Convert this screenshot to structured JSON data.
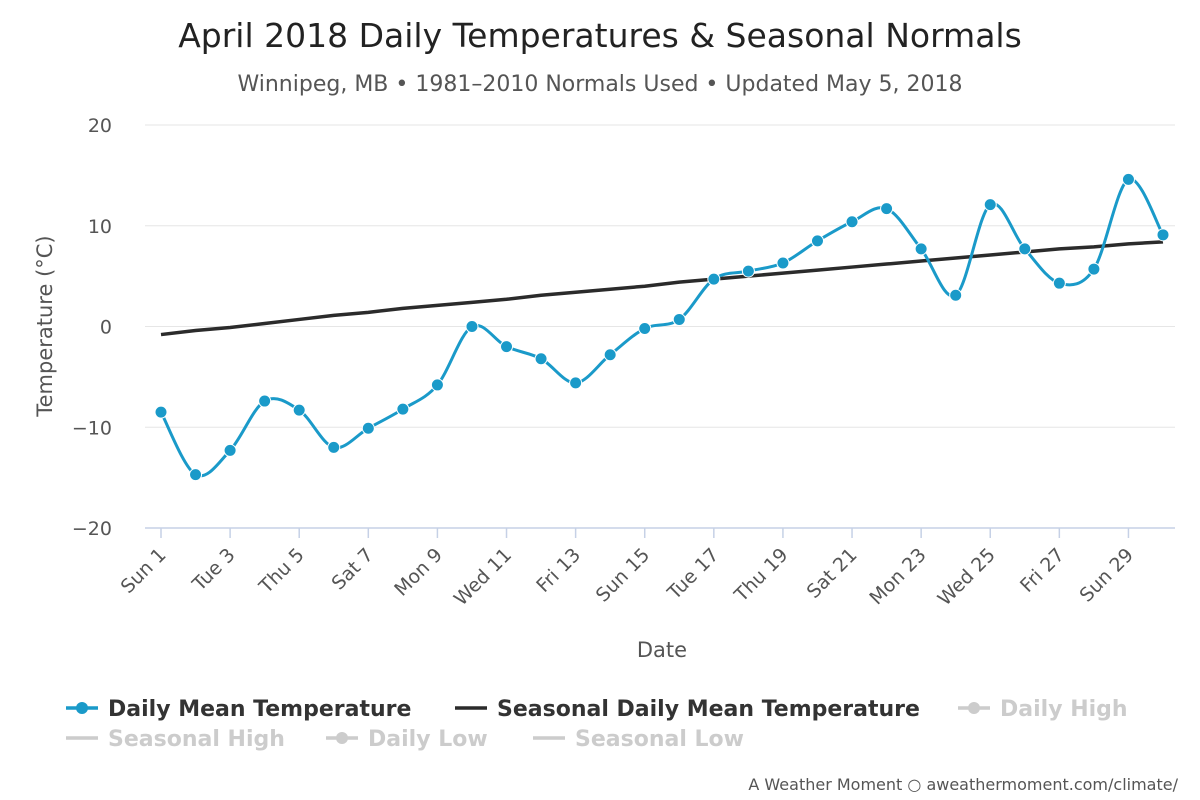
{
  "chart_data": {
    "type": "line",
    "title": "April 2018 Daily Temperatures & Seasonal Normals",
    "subtitle": "Winnipeg, MB • 1981–2010 Normals Used • Updated May 5, 2018",
    "xlabel": "Date",
    "ylabel": "Temperature (°C)",
    "ylim": [
      -20,
      20
    ],
    "yticks": [
      -20,
      -10,
      0,
      10,
      20
    ],
    "x": [
      "Sun 1",
      "Mon 2",
      "Tue 3",
      "Wed 4",
      "Thu 5",
      "Fri 6",
      "Sat 7",
      "Sun 8",
      "Mon 9",
      "Tue 10",
      "Wed 11",
      "Thu 12",
      "Fri 13",
      "Sat 14",
      "Sun 15",
      "Mon 16",
      "Tue 17",
      "Wed 18",
      "Thu 19",
      "Fri 20",
      "Sat 21",
      "Sun 22",
      "Mon 23",
      "Tue 24",
      "Wed 25",
      "Thu 26",
      "Fri 27",
      "Sat 28",
      "Sun 29",
      "Mon 30"
    ],
    "xtick_labels": [
      "Sun 1",
      "Tue 3",
      "Thu 5",
      "Sat 7",
      "Mon 9",
      "Wed 11",
      "Fri 13",
      "Sun 15",
      "Tue 17",
      "Thu 19",
      "Sat 21",
      "Mon 23",
      "Wed 25",
      "Fri 27",
      "Sun 29"
    ],
    "grid": true,
    "legend_placement": "bottom",
    "series": [
      {
        "name": "Daily Mean Temperature",
        "color": "#1a9ac9",
        "marker": true,
        "visible": true,
        "values": [
          -8.5,
          -14.7,
          -12.3,
          -7.4,
          -8.3,
          -12.0,
          -10.1,
          -8.2,
          -5.8,
          0.0,
          -2.0,
          -3.2,
          -5.6,
          -2.8,
          -0.2,
          0.7,
          4.7,
          5.5,
          6.3,
          8.5,
          10.4,
          11.7,
          7.7,
          3.1,
          12.1,
          7.7,
          4.3,
          5.7,
          14.6,
          9.1
        ]
      },
      {
        "name": "Seasonal Daily Mean Temperature",
        "color": "#2b2b2b",
        "marker": false,
        "visible": true,
        "values": [
          -0.8,
          -0.4,
          -0.1,
          0.3,
          0.7,
          1.1,
          1.4,
          1.8,
          2.1,
          2.4,
          2.7,
          3.1,
          3.4,
          3.7,
          4.0,
          4.4,
          4.7,
          5.0,
          5.3,
          5.6,
          5.9,
          6.2,
          6.5,
          6.8,
          7.1,
          7.4,
          7.7,
          7.9,
          8.2,
          8.4
        ]
      }
    ],
    "legend": [
      {
        "name": "Daily Mean Temperature",
        "symbol": "line-marker",
        "color": "#1a9ac9",
        "active": true
      },
      {
        "name": "Seasonal Daily Mean Temperature",
        "symbol": "line",
        "color": "#2b2b2b",
        "active": true
      },
      {
        "name": "Daily High",
        "symbol": "line-marker",
        "color": "#cccccc",
        "active": false
      },
      {
        "name": "Seasonal High",
        "symbol": "line",
        "color": "#cccccc",
        "active": false
      },
      {
        "name": "Daily Low",
        "symbol": "line-marker",
        "color": "#cccccc",
        "active": false
      },
      {
        "name": "Seasonal Low",
        "symbol": "line",
        "color": "#cccccc",
        "active": false
      }
    ],
    "credit": "A Weather Moment ○ aweathermoment.com/climate/"
  }
}
